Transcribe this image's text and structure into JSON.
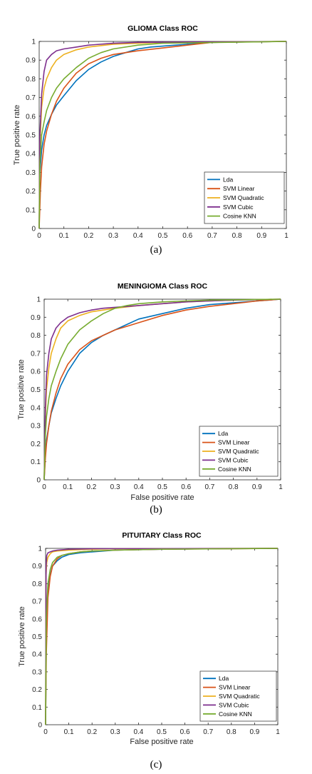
{
  "chart_data": [
    {
      "type": "line",
      "title": "GLIOMA Class ROC",
      "xlabel": "False positive rate",
      "ylabel": "True positive rate",
      "xlim": [
        0,
        1
      ],
      "ylim": [
        0,
        1
      ],
      "xticks": [
        "0",
        "0.1",
        "0.2",
        "0.3",
        "0.4",
        "0.5",
        "0.6",
        "0.7",
        "0.8",
        "0.9",
        "1"
      ],
      "yticks": [
        "0",
        "0.1",
        "0.2",
        "0.3",
        "0.4",
        "0.5",
        "0.6",
        "0.7",
        "0.8",
        "0.9",
        "1"
      ],
      "grid": false,
      "legend_position": "bottom-right",
      "caption": "(a)",
      "series": [
        {
          "name": "Lda",
          "color": "#0072BD",
          "x": [
            0,
            0.003,
            0.01,
            0.02,
            0.03,
            0.05,
            0.07,
            0.1,
            0.15,
            0.2,
            0.25,
            0.3,
            0.35,
            0.4,
            0.45,
            0.5,
            0.6,
            0.7,
            1
          ],
          "y": [
            0,
            0.3,
            0.42,
            0.5,
            0.55,
            0.61,
            0.66,
            0.71,
            0.79,
            0.85,
            0.89,
            0.92,
            0.94,
            0.96,
            0.97,
            0.975,
            0.985,
            0.995,
            1
          ]
        },
        {
          "name": "SVM Linear",
          "color": "#D95319",
          "x": [
            0,
            0.005,
            0.01,
            0.02,
            0.03,
            0.05,
            0.07,
            0.1,
            0.15,
            0.2,
            0.25,
            0.3,
            0.4,
            0.5,
            0.6,
            0.7,
            1
          ],
          "y": [
            0,
            0.2,
            0.33,
            0.45,
            0.52,
            0.61,
            0.68,
            0.75,
            0.83,
            0.88,
            0.91,
            0.93,
            0.95,
            0.965,
            0.98,
            0.995,
            1
          ]
        },
        {
          "name": "SVM Quadratic",
          "color": "#EDB120",
          "x": [
            0,
            0.003,
            0.01,
            0.02,
            0.03,
            0.05,
            0.07,
            0.1,
            0.15,
            0.2,
            0.3,
            0.4,
            0.5,
            1
          ],
          "y": [
            0,
            0.45,
            0.65,
            0.75,
            0.8,
            0.86,
            0.9,
            0.93,
            0.955,
            0.97,
            0.985,
            0.99,
            0.995,
            1
          ]
        },
        {
          "name": "SVM Cubic",
          "color": "#7E2F8E",
          "x": [
            0,
            0.003,
            0.01,
            0.02,
            0.03,
            0.05,
            0.07,
            0.1,
            0.15,
            0.2,
            0.3,
            0.4,
            1
          ],
          "y": [
            0,
            0.5,
            0.72,
            0.84,
            0.9,
            0.93,
            0.95,
            0.96,
            0.97,
            0.98,
            0.99,
            0.995,
            1
          ]
        },
        {
          "name": "Cosine KNN",
          "color": "#77AC30",
          "x": [
            0,
            0.003,
            0.01,
            0.02,
            0.03,
            0.05,
            0.07,
            0.1,
            0.15,
            0.2,
            0.25,
            0.3,
            0.4,
            0.5,
            1
          ],
          "y": [
            0,
            0.35,
            0.5,
            0.57,
            0.63,
            0.7,
            0.75,
            0.8,
            0.86,
            0.91,
            0.94,
            0.96,
            0.98,
            0.99,
            1
          ]
        }
      ]
    },
    {
      "type": "line",
      "title": "MENINGIOMA Class ROC",
      "xlabel": "False positive rate",
      "ylabel": "True positive rate",
      "xlim": [
        0,
        1
      ],
      "ylim": [
        0,
        1
      ],
      "xticks": [
        "0",
        "0.1",
        "0.2",
        "0.3",
        "0.4",
        "0.5",
        "0.6",
        "0.7",
        "0.8",
        "0.9",
        "1"
      ],
      "yticks": [
        "0",
        "0.1",
        "0.2",
        "0.3",
        "0.4",
        "0.5",
        "0.6",
        "0.7",
        "0.8",
        "0.9",
        "1"
      ],
      "grid": false,
      "legend_position": "bottom-right",
      "caption": "(b)",
      "series": [
        {
          "name": "Lda",
          "color": "#0072BD",
          "x": [
            0,
            0.005,
            0.01,
            0.02,
            0.03,
            0.05,
            0.07,
            0.1,
            0.15,
            0.2,
            0.25,
            0.3,
            0.35,
            0.4,
            0.5,
            0.6,
            0.7,
            0.8,
            0.9,
            1
          ],
          "y": [
            0,
            0.15,
            0.22,
            0.3,
            0.37,
            0.45,
            0.52,
            0.6,
            0.7,
            0.76,
            0.8,
            0.83,
            0.86,
            0.89,
            0.92,
            0.95,
            0.97,
            0.98,
            0.99,
            1
          ]
        },
        {
          "name": "SVM Linear",
          "color": "#D95319",
          "x": [
            0,
            0.005,
            0.01,
            0.02,
            0.03,
            0.05,
            0.07,
            0.1,
            0.15,
            0.2,
            0.25,
            0.3,
            0.35,
            0.4,
            0.5,
            0.6,
            0.7,
            0.8,
            0.9,
            1
          ],
          "y": [
            0,
            0.12,
            0.2,
            0.3,
            0.38,
            0.48,
            0.56,
            0.64,
            0.72,
            0.77,
            0.8,
            0.83,
            0.85,
            0.87,
            0.91,
            0.94,
            0.96,
            0.975,
            0.99,
            1
          ]
        },
        {
          "name": "SVM Quadratic",
          "color": "#EDB120",
          "x": [
            0,
            0.005,
            0.01,
            0.02,
            0.03,
            0.05,
            0.07,
            0.1,
            0.15,
            0.2,
            0.25,
            0.3,
            0.4,
            0.5,
            0.6,
            0.7,
            0.8,
            1
          ],
          "y": [
            0,
            0.35,
            0.5,
            0.62,
            0.7,
            0.78,
            0.84,
            0.88,
            0.91,
            0.93,
            0.94,
            0.95,
            0.965,
            0.975,
            0.985,
            0.99,
            0.995,
            1
          ]
        },
        {
          "name": "SVM Cubic",
          "color": "#7E2F8E",
          "x": [
            0,
            0.005,
            0.01,
            0.02,
            0.03,
            0.05,
            0.07,
            0.1,
            0.15,
            0.2,
            0.25,
            0.3,
            0.4,
            0.5,
            0.6,
            0.7,
            0.8,
            1
          ],
          "y": [
            0,
            0.4,
            0.58,
            0.7,
            0.78,
            0.84,
            0.87,
            0.9,
            0.925,
            0.94,
            0.95,
            0.955,
            0.965,
            0.975,
            0.985,
            0.99,
            0.995,
            1
          ]
        },
        {
          "name": "Cosine KNN",
          "color": "#77AC30",
          "x": [
            0,
            0.005,
            0.01,
            0.02,
            0.03,
            0.05,
            0.07,
            0.1,
            0.15,
            0.2,
            0.25,
            0.3,
            0.35,
            0.4,
            0.5,
            0.6,
            0.7,
            1
          ],
          "y": [
            0,
            0.25,
            0.35,
            0.45,
            0.52,
            0.6,
            0.67,
            0.75,
            0.83,
            0.88,
            0.92,
            0.95,
            0.965,
            0.975,
            0.985,
            0.99,
            0.995,
            1
          ]
        }
      ]
    },
    {
      "type": "line",
      "title": "PITUITARY Class ROC",
      "xlabel": "False positive rate",
      "ylabel": "True positive rate",
      "xlim": [
        0,
        1
      ],
      "ylim": [
        0,
        1
      ],
      "xticks": [
        "0",
        "0.1",
        "0.2",
        "0.3",
        "0.4",
        "0.5",
        "0.6",
        "0.7",
        "0.8",
        "0.9",
        "1"
      ],
      "yticks": [
        "0",
        "0.1",
        "0.2",
        "0.3",
        "0.4",
        "0.5",
        "0.6",
        "0.7",
        "0.8",
        "0.9",
        "1"
      ],
      "grid": false,
      "legend_position": "bottom-right",
      "caption": "(c)",
      "series": [
        {
          "name": "Lda",
          "color": "#0072BD",
          "x": [
            0,
            0.003,
            0.01,
            0.02,
            0.03,
            0.05,
            0.07,
            0.1,
            0.15,
            0.2,
            0.3,
            0.5,
            0.7,
            1
          ],
          "y": [
            0,
            0.5,
            0.75,
            0.85,
            0.9,
            0.93,
            0.95,
            0.965,
            0.975,
            0.98,
            0.99,
            0.995,
            0.998,
            1
          ]
        },
        {
          "name": "SVM Linear",
          "color": "#D95319",
          "x": [
            0,
            0.003,
            0.01,
            0.02,
            0.03,
            0.05,
            0.07,
            0.1,
            0.15,
            0.2,
            0.3,
            0.5,
            1
          ],
          "y": [
            0,
            0.4,
            0.72,
            0.84,
            0.9,
            0.94,
            0.96,
            0.97,
            0.98,
            0.985,
            0.99,
            0.995,
            1
          ]
        },
        {
          "name": "SVM Quadratic",
          "color": "#EDB120",
          "x": [
            0,
            0.002,
            0.005,
            0.01,
            0.02,
            0.03,
            0.05,
            0.1,
            0.2,
            0.3,
            1
          ],
          "y": [
            0,
            0.85,
            0.92,
            0.95,
            0.97,
            0.98,
            0.985,
            0.99,
            0.995,
            0.998,
            1
          ]
        },
        {
          "name": "SVM Cubic",
          "color": "#7E2F8E",
          "x": [
            0,
            0.002,
            0.005,
            0.01,
            0.02,
            0.03,
            0.05,
            0.1,
            0.2,
            1
          ],
          "y": [
            0,
            0.9,
            0.96,
            0.975,
            0.98,
            0.985,
            0.99,
            0.995,
            0.998,
            1
          ]
        },
        {
          "name": "Cosine KNN",
          "color": "#77AC30",
          "x": [
            0,
            0.003,
            0.01,
            0.02,
            0.03,
            0.05,
            0.07,
            0.1,
            0.15,
            0.2,
            0.3,
            0.5,
            1
          ],
          "y": [
            0,
            0.6,
            0.8,
            0.88,
            0.92,
            0.95,
            0.96,
            0.97,
            0.98,
            0.985,
            0.99,
            0.995,
            1
          ]
        }
      ]
    }
  ]
}
